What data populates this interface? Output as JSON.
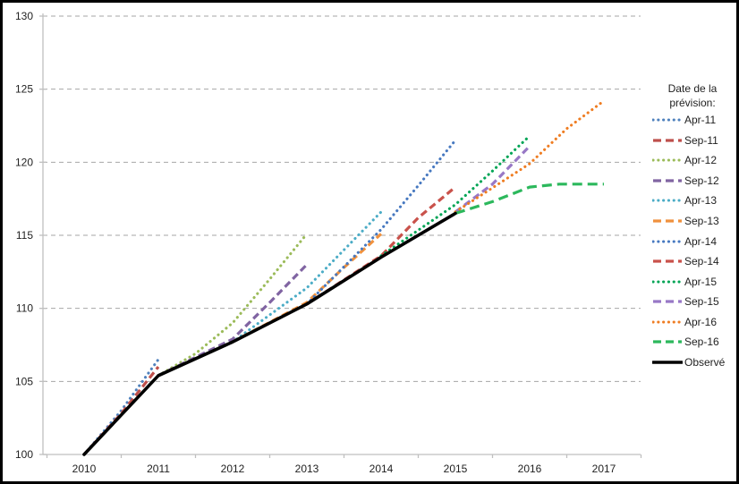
{
  "chart_data": {
    "type": "line",
    "title": "",
    "legend_title_line1": "Date de la",
    "legend_title_line2": "prévision:",
    "legend_position": "right",
    "x_tick_labels": [
      "2010",
      "2011",
      "2012",
      "2013",
      "2014",
      "2015",
      "2016",
      "2017"
    ],
    "y_tick_labels": [
      "100",
      "105",
      "110",
      "115",
      "120",
      "125",
      "130"
    ],
    "xlim": [
      2010,
      2017
    ],
    "ylim": [
      100,
      130
    ],
    "grid": "horizontal-dashed",
    "axis_color": "#BFBFBF",
    "gridline_color": "#A6A6A6",
    "text_color": "#1F1F1F",
    "background_color": "#FFFFFF",
    "border_color": "#000000",
    "series": [
      {
        "name": "Apr-11",
        "color": "#4F81BD",
        "style": "dotted",
        "points": [
          [
            2010,
            100.0
          ],
          [
            2010.5,
            103.0
          ],
          [
            2011,
            106.5
          ]
        ]
      },
      {
        "name": "Sep-11",
        "color": "#BE504C",
        "style": "dashed",
        "points": [
          [
            2010,
            100.0
          ],
          [
            2010.5,
            102.8
          ],
          [
            2011,
            106.0
          ]
        ]
      },
      {
        "name": "Apr-12",
        "color": "#9BBB59",
        "style": "dotted",
        "points": [
          [
            2011,
            105.4
          ],
          [
            2011.5,
            106.9
          ],
          [
            2012,
            109.0
          ],
          [
            2012.5,
            112.0
          ],
          [
            2013,
            115.1
          ]
        ]
      },
      {
        "name": "Sep-12",
        "color": "#8064A2",
        "style": "dashed",
        "points": [
          [
            2011,
            105.4
          ],
          [
            2012,
            107.9
          ],
          [
            2012.5,
            110.4
          ],
          [
            2013,
            113.0
          ]
        ]
      },
      {
        "name": "Apr-13",
        "color": "#4BACC6",
        "style": "dotted",
        "points": [
          [
            2012,
            107.7
          ],
          [
            2013,
            111.4
          ],
          [
            2013.5,
            114.0
          ],
          [
            2014,
            116.6
          ]
        ]
      },
      {
        "name": "Sep-13",
        "color": "#F0913D",
        "style": "dashed",
        "points": [
          [
            2012,
            107.7
          ],
          [
            2013,
            110.4
          ],
          [
            2013.5,
            112.8
          ],
          [
            2014,
            115.1
          ]
        ]
      },
      {
        "name": "Apr-14",
        "color": "#4678C0",
        "style": "dotted",
        "points": [
          [
            2013,
            110.3
          ],
          [
            2014,
            115.4
          ],
          [
            2014.5,
            118.4
          ],
          [
            2015,
            121.5
          ]
        ]
      },
      {
        "name": "Sep-14",
        "color": "#C9524B",
        "style": "dashed",
        "points": [
          [
            2013,
            110.3
          ],
          [
            2014,
            113.6
          ],
          [
            2014.5,
            116.2
          ],
          [
            2015,
            118.3
          ]
        ]
      },
      {
        "name": "Apr-15",
        "color": "#00A455",
        "style": "dotted",
        "points": [
          [
            2014,
            113.6
          ],
          [
            2015,
            117.1
          ],
          [
            2015.5,
            119.4
          ],
          [
            2016,
            121.8
          ]
        ]
      },
      {
        "name": "Sep-15",
        "color": "#9878C6",
        "style": "dashed",
        "points": [
          [
            2015,
            116.6
          ],
          [
            2015.5,
            118.5
          ],
          [
            2016,
            121.1
          ]
        ]
      },
      {
        "name": "Apr-16",
        "color": "#EF7D22",
        "style": "dotted",
        "points": [
          [
            2015,
            116.6
          ],
          [
            2016,
            119.9
          ],
          [
            2016.5,
            122.3
          ],
          [
            2017,
            124.2
          ]
        ]
      },
      {
        "name": "Sep-16",
        "color": "#2CB85C",
        "style": "dashed-long",
        "points": [
          [
            2015,
            116.5
          ],
          [
            2015.5,
            117.3
          ],
          [
            2016,
            118.3
          ],
          [
            2016.4,
            118.5
          ],
          [
            2017,
            118.5
          ]
        ]
      },
      {
        "name": "Observé",
        "color": "#000000",
        "style": "solid",
        "points": [
          [
            2010,
            100.0
          ],
          [
            2011,
            105.4
          ],
          [
            2012,
            107.7
          ],
          [
            2013,
            110.3
          ],
          [
            2014,
            113.5
          ],
          [
            2015,
            116.5
          ]
        ]
      }
    ]
  }
}
